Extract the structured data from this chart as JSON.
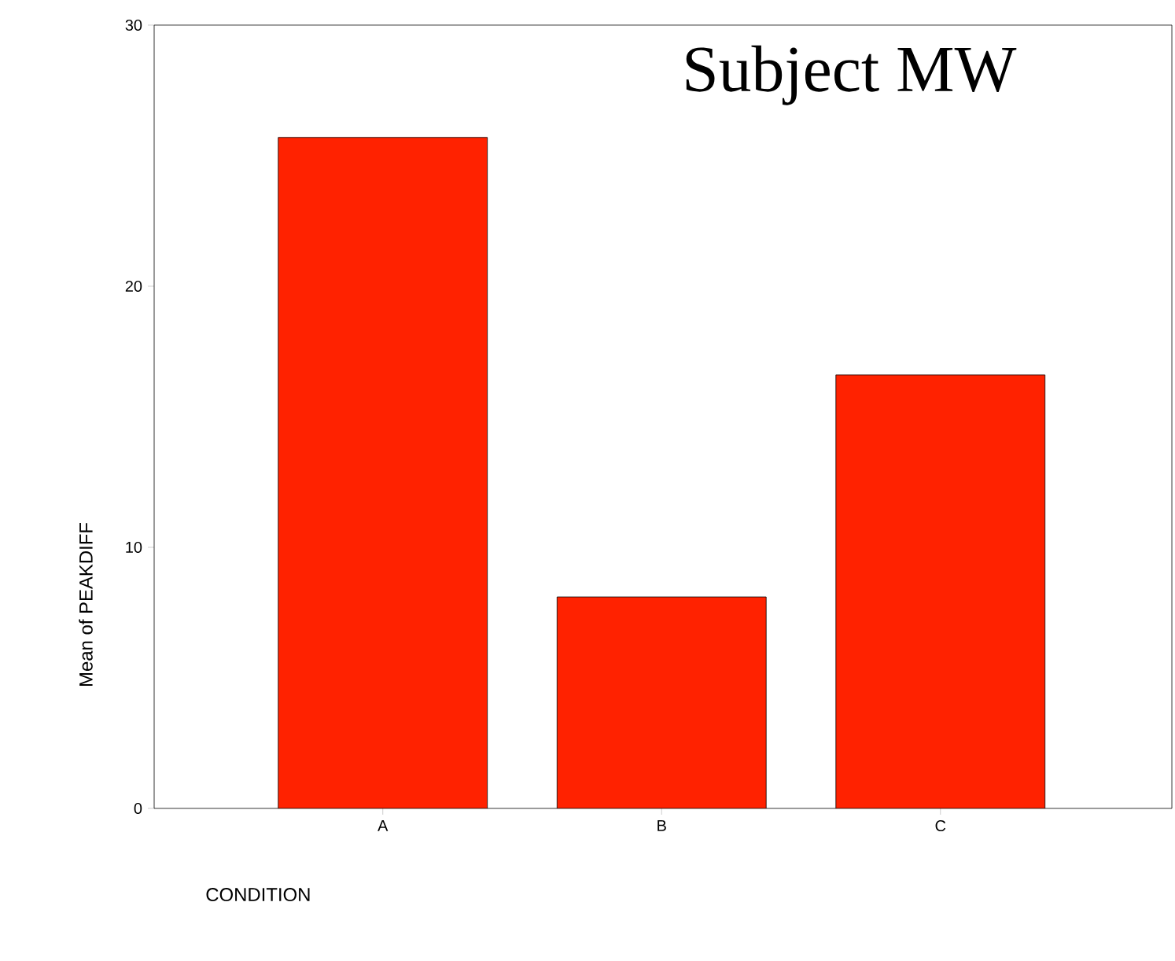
{
  "chart_data": {
    "type": "bar",
    "categories": [
      "A",
      "B",
      "C"
    ],
    "values": [
      25.7,
      8.1,
      16.6
    ],
    "color": "#ff2200",
    "ylabel": "Mean of PEAKDIFF",
    "xlabel": "CONDITION",
    "annotations": [
      "Subject MW"
    ],
    "ylim": [
      0,
      30
    ],
    "yticks": [
      0,
      10,
      20,
      30
    ],
    "grid": false
  }
}
